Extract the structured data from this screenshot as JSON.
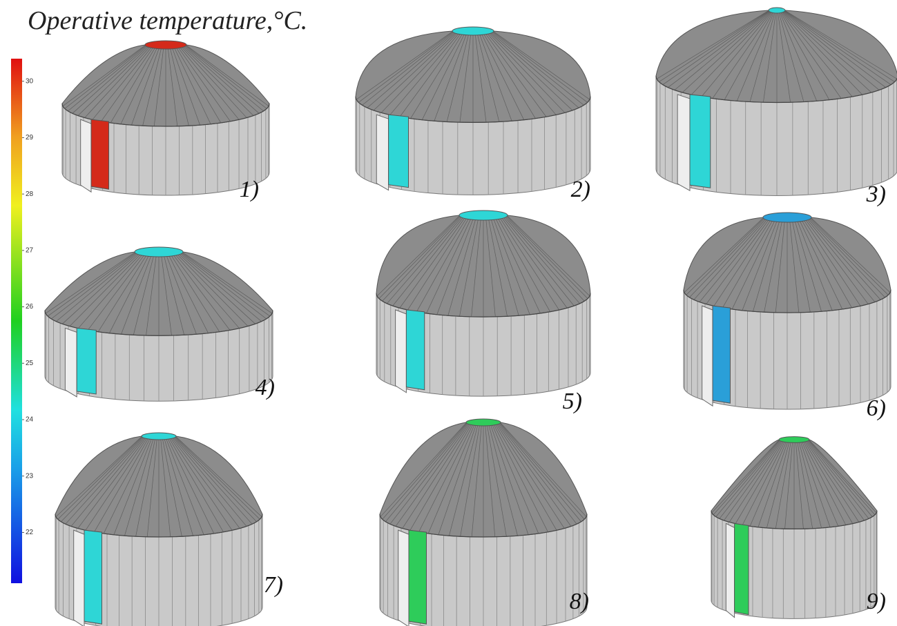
{
  "title": "Operative temperature,°C.",
  "colorbar": {
    "range": [
      21.1,
      30.4
    ],
    "ticks": [
      22,
      23,
      24,
      25,
      26,
      27,
      28,
      29,
      30
    ]
  },
  "panels": [
    {
      "label": "1)",
      "color": "#d42a1a"
    },
    {
      "label": "2)",
      "color": "#2ed6d6"
    },
    {
      "label": "3)",
      "color": "#2ed6d6"
    },
    {
      "label": "4)",
      "color": "#2ed6d6"
    },
    {
      "label": "5)",
      "color": "#2ed6d6"
    },
    {
      "label": "6)",
      "color": "#2a9fd8"
    },
    {
      "label": "7)",
      "color": "#2ed6d6"
    },
    {
      "label": "8)",
      "color": "#2ecc5a"
    },
    {
      "label": "9)",
      "color": "#2ecc5a"
    }
  ]
}
